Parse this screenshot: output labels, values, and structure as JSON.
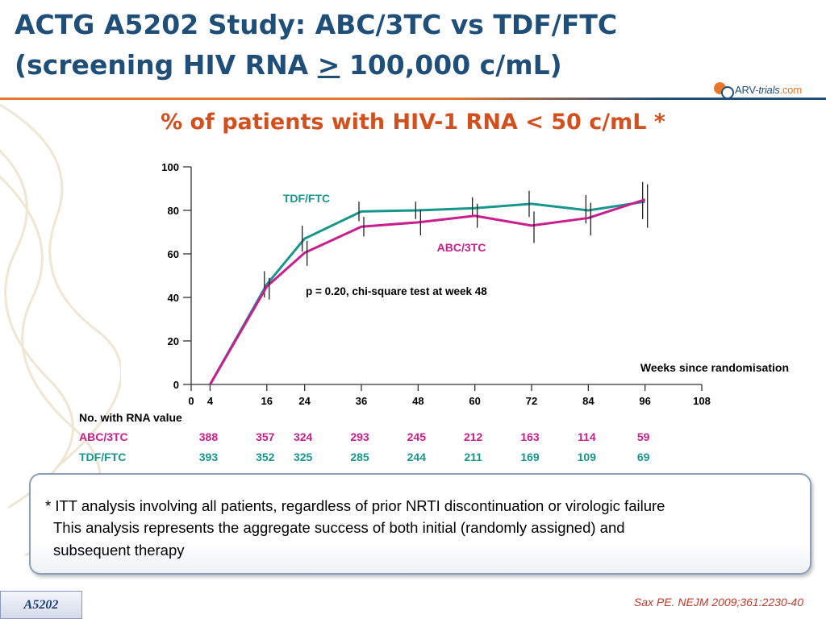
{
  "title": {
    "line1": "ACTG A5202 Study: ABC/3TC vs TDF/FTC",
    "line2_pre": "(screening HIV RNA ",
    "line2_sym": ">",
    "line2_post": " 100,000 c/mL)"
  },
  "logo": {
    "part1": "ARV",
    "part2": "-",
    "part3": "trials",
    "part4": ".com"
  },
  "subtitle": "% of patients with HIV-1 RNA < 50 c/mL *",
  "colors": {
    "title": "#1f4e79",
    "accent": "#d2501e",
    "tdf_ftc": "#17968c",
    "abc_3tc": "#c81e8e",
    "rule_left": "#e8772e",
    "rule_right": "#1f4e79"
  },
  "chart_data": {
    "type": "line",
    "xlabel": "Weeks since randomisation",
    "ylabel": "",
    "xlim": [
      0,
      108
    ],
    "ylim": [
      0,
      100
    ],
    "x_ticks": [
      0,
      4,
      16,
      24,
      36,
      48,
      60,
      72,
      84,
      96,
      108
    ],
    "y_ticks": [
      0,
      20,
      40,
      60,
      80,
      100
    ],
    "annotation": "p = 0.20, chi-square test at week 48",
    "series": [
      {
        "name": "TDF/FTC",
        "x": [
          4,
          16,
          24,
          36,
          48,
          60,
          72,
          84,
          96
        ],
        "y": [
          0,
          46,
          67,
          79.5,
          80,
          81,
          83,
          80,
          84
        ],
        "error_low": [
          0,
          40,
          61,
          75,
          76,
          77,
          77,
          74,
          76
        ],
        "error_high": [
          0,
          52,
          73,
          84,
          84,
          86,
          89,
          87,
          93
        ]
      },
      {
        "name": "ABC/3TC",
        "x": [
          4,
          16,
          24,
          36,
          48,
          60,
          72,
          84,
          96
        ],
        "y": [
          0,
          45,
          60.5,
          72.5,
          74.5,
          77.5,
          73,
          76.5,
          85
        ],
        "error_low": [
          0,
          39,
          54.5,
          68,
          68.5,
          72,
          65,
          68.5,
          72
        ],
        "error_high": [
          0,
          49,
          66,
          77,
          80.5,
          83,
          79.5,
          83.5,
          92
        ]
      }
    ]
  },
  "table": {
    "header": "No. with RNA value",
    "weeks": [
      4,
      16,
      24,
      36,
      48,
      60,
      72,
      84,
      96
    ],
    "rows": [
      {
        "label": "ABC/3TC",
        "values": [
          "388",
          "357",
          "324",
          "293",
          "245",
          "212",
          "163",
          "114",
          "59"
        ]
      },
      {
        "label": "TDF/FTC",
        "values": [
          "393",
          "352",
          "325",
          "285",
          "244",
          "211",
          "169",
          "109",
          "69"
        ]
      }
    ]
  },
  "note": {
    "line1": "* ITT analysis involving all patients, regardless of prior NRTI discontinuation or virologic failure",
    "line2": "This analysis represents the aggregate success of both initial (randomly assigned) and",
    "line3": "subsequent therapy"
  },
  "footer_tag": "A5202",
  "citation": "Sax PE. NEJM 2009;361:2230-40"
}
